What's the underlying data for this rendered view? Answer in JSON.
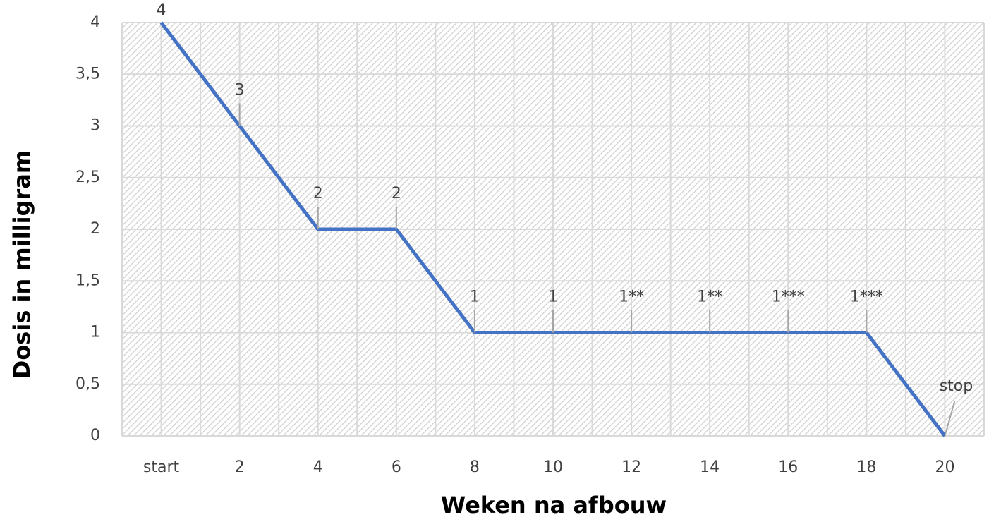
{
  "chart_data": {
    "type": "line",
    "x_label": "Weken na afbouw",
    "y_label": "Dosis in milligram",
    "categories": [
      "start",
      "2",
      "4",
      "6",
      "8",
      "10",
      "12",
      "14",
      "16",
      "18",
      "20"
    ],
    "series": [
      {
        "color": "#4472c4",
        "values": [
          4,
          3,
          2,
          2,
          1,
          1,
          1,
          1,
          1,
          1,
          0
        ],
        "value_labels": [
          "4",
          "3",
          "2",
          "2",
          "1",
          "1",
          "1**",
          "1**",
          "1***",
          "1***",
          "stop"
        ]
      }
    ],
    "ylim": [
      0,
      4
    ],
    "yticks": [
      0,
      {
        "value": 0.5,
        "label": "0,5"
      },
      1,
      {
        "value": 1.5,
        "label": "1,5"
      },
      2,
      {
        "value": 2.5,
        "label": "2,5"
      },
      3,
      {
        "value": 3.5,
        "label": "3,5"
      },
      4
    ],
    "grid": true
  }
}
